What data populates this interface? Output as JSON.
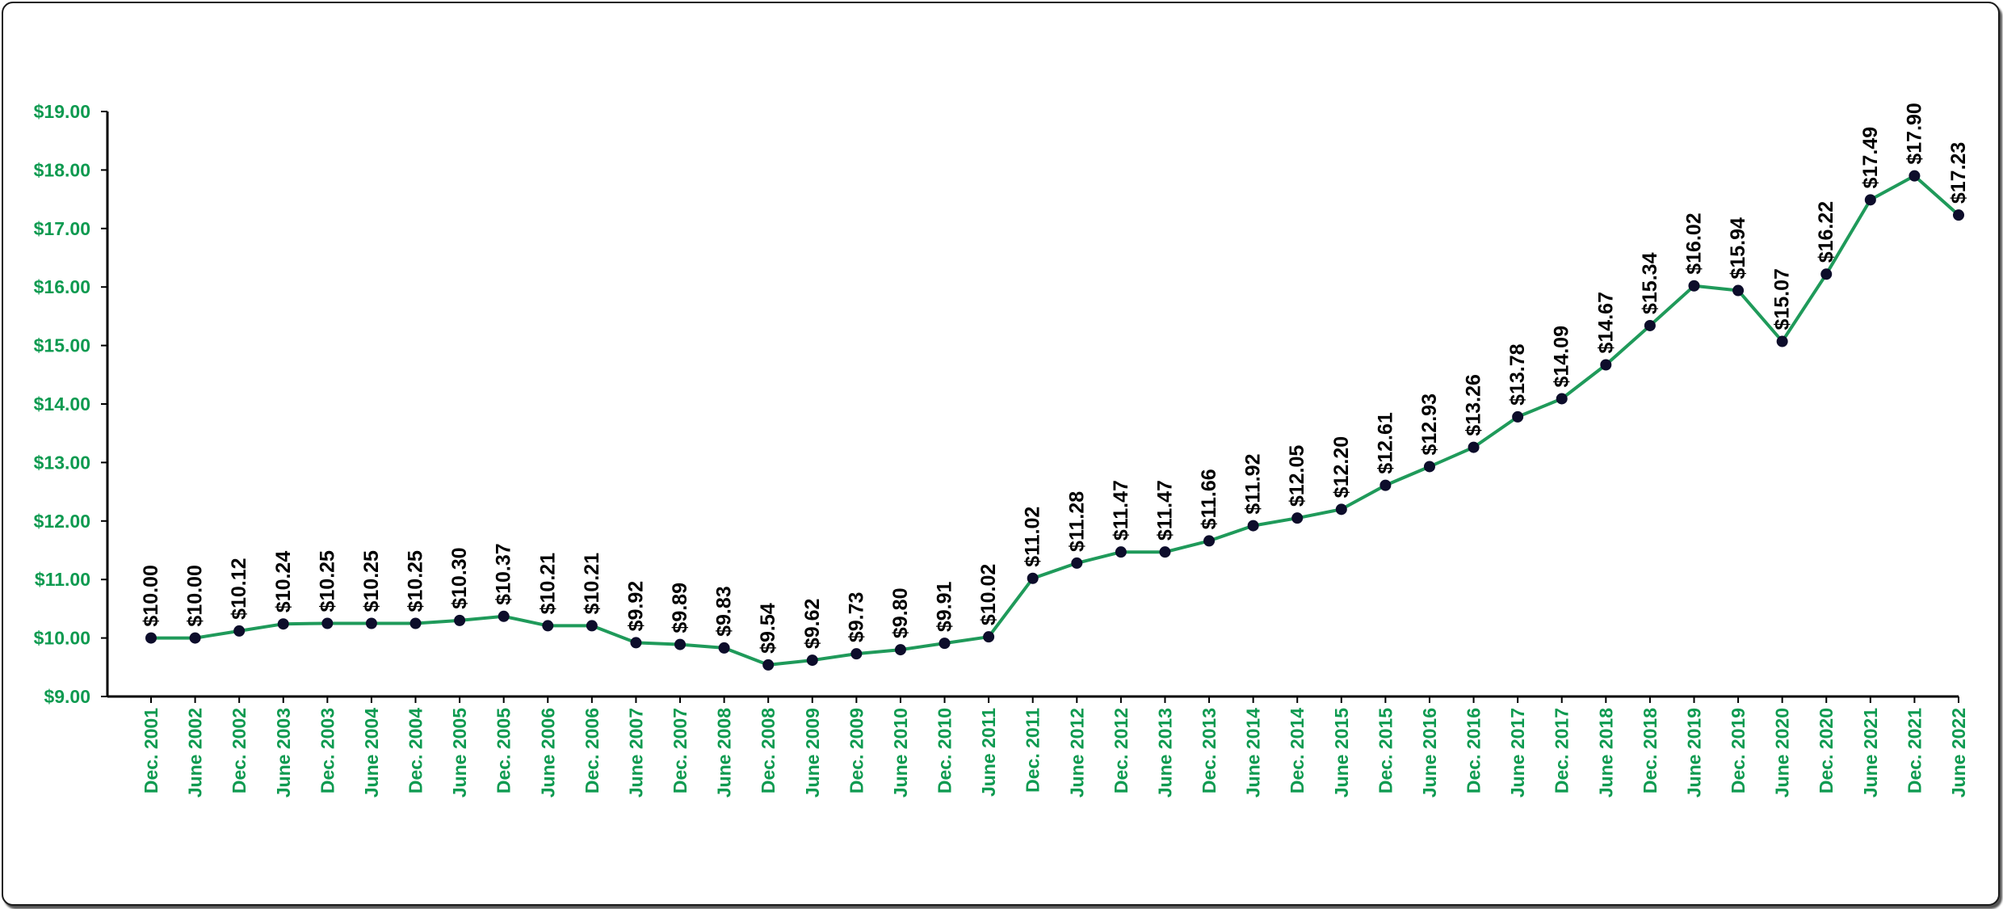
{
  "colors": {
    "line": "#1f9a5a",
    "marker": "#0d0d2b",
    "axis_text": "#0e9a50",
    "axis": "#000000"
  },
  "chart_data": {
    "type": "line",
    "title": "",
    "xlabel": "",
    "ylabel": "",
    "ylim": [
      9,
      19
    ],
    "yticks": [
      "$9.00",
      "$10.00",
      "$11.00",
      "$12.00",
      "$13.00",
      "$14.00",
      "$15.00",
      "$16.00",
      "$17.00",
      "$18.00",
      "$19.00"
    ],
    "categories": [
      "Dec. 2001",
      "June 2002",
      "Dec. 2002",
      "June 2003",
      "Dec. 2003",
      "June 2004",
      "Dec. 2004",
      "June 2005",
      "Dec. 2005",
      "June 2006",
      "Dec. 2006",
      "June 2007",
      "Dec. 2007",
      "June 2008",
      "Dec. 2008",
      "June 2009",
      "Dec. 2009",
      "June 2010",
      "Dec. 2010",
      "June 2011",
      "Dec. 2011",
      "June 2012",
      "Dec. 2012",
      "June 2013",
      "Dec. 2013",
      "June 2014",
      "Dec. 2014",
      "June 2015",
      "Dec. 2015",
      "June 2016",
      "Dec. 2016",
      "June 2017",
      "Dec. 2017",
      "June 2018",
      "Dec. 2018",
      "June 2019",
      "Dec. 2019",
      "June 2020",
      "Dec. 2020",
      "June 2021",
      "Dec. 2021",
      "June 2022"
    ],
    "values": [
      10.0,
      10.0,
      10.12,
      10.24,
      10.25,
      10.25,
      10.25,
      10.3,
      10.37,
      10.21,
      10.21,
      9.92,
      9.89,
      9.83,
      9.54,
      9.62,
      9.73,
      9.8,
      9.91,
      10.02,
      11.02,
      11.28,
      11.47,
      11.47,
      11.66,
      11.92,
      12.05,
      12.2,
      12.61,
      12.93,
      13.26,
      13.78,
      14.09,
      14.67,
      15.34,
      16.02,
      15.94,
      15.07,
      16.22,
      17.49,
      17.9,
      17.23
    ],
    "labels": [
      "$10.00",
      "$10.00",
      "$10.12",
      "$10.24",
      "$10.25",
      "$10.25",
      "$10.25",
      "$10.30",
      "$10.37",
      "$10.21",
      "$10.21",
      "$9.92",
      "$9.89",
      "$9.83",
      "$9.54",
      "$9.62",
      "$9.73",
      "$9.80",
      "$9.91",
      "$10.02",
      "$11.02",
      "$11.28",
      "$11.47",
      "$11.47",
      "$11.66",
      "$11.92",
      "$12.05",
      "$12.20",
      "$12.61",
      "$12.93",
      "$13.26",
      "$13.78",
      "$14.09",
      "$14.67",
      "$15.34",
      "$16.02",
      "$15.94",
      "$15.07",
      "$16.22",
      "$17.49",
      "$17.90",
      "$17.23"
    ],
    "grid": false,
    "legend": "none"
  }
}
